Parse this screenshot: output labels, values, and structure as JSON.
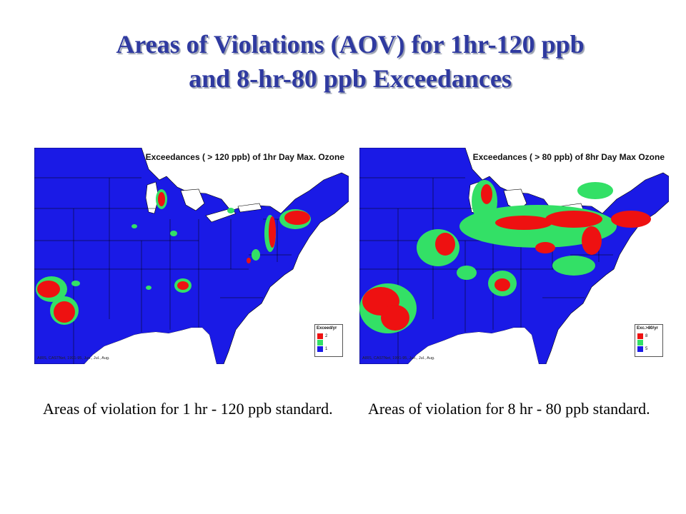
{
  "slide": {
    "title_line1": "Areas of Violations (AOV) for 1hr-120 ppb",
    "title_line2": "and 8-hr-80 ppb Exceedances"
  },
  "colors": {
    "background": "#ffffff",
    "land": "#1a1ae6",
    "low_exceedance": "#33e066",
    "high_exceedance": "#ee1111",
    "outside": "#ffffff",
    "title": "#2f3aa0"
  },
  "maps": {
    "left": {
      "header": "Exceedances ( > 120 ppb) of 1hr Day Max. Ozone",
      "source": "AIRS, CASTNet, 1991-95, Jun., Jul., Aug.",
      "legend": {
        "title": "Exceed/yr",
        "items": [
          {
            "value": "2",
            "color": "#ee1111"
          },
          {
            "value": "",
            "color": "#33e066"
          },
          {
            "value": "1",
            "color": "#1a1ae6"
          }
        ]
      },
      "caption": "Areas of violation for 1 hr - 120 ppb standard."
    },
    "right": {
      "header": "Exceedances ( > 80  ppb) of 8hr Day Max Ozone",
      "source": "AIRS, CASTNet, 1991-95, Jun., Jul., Aug.",
      "legend": {
        "title": "Exc.>80/yr",
        "items": [
          {
            "value": "8",
            "color": "#ee1111"
          },
          {
            "value": "",
            "color": "#33e066"
          },
          {
            "value": "5",
            "color": "#1a1ae6"
          }
        ]
      },
      "caption": "Areas of violation for 8 hr - 80 ppb standard."
    }
  }
}
